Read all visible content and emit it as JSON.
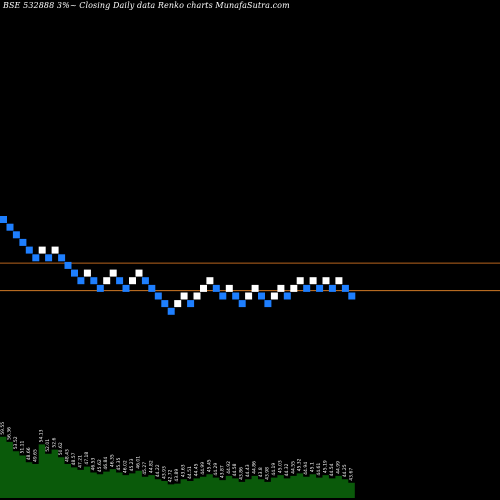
{
  "title": "BSE 532888  3%~  Closing Daily data  Renko  charts MunafaSutra.com",
  "colors": {
    "background": "#000000",
    "up_brick": "#ffffff",
    "down_brick": "#1e7fff",
    "line_1": "#b8641e",
    "line_2": "#d07a26",
    "volume": "#0a5a0a",
    "volume_label": "#ffffff"
  },
  "chart_data": {
    "type": "renko",
    "brick_percent": 3,
    "bricks": [
      {
        "dir": "down",
        "level": 0
      },
      {
        "dir": "down",
        "level": -1
      },
      {
        "dir": "down",
        "level": -2
      },
      {
        "dir": "down",
        "level": -3
      },
      {
        "dir": "down",
        "level": -4
      },
      {
        "dir": "down",
        "level": -5
      },
      {
        "dir": "up",
        "level": -4
      },
      {
        "dir": "down",
        "level": -5
      },
      {
        "dir": "up",
        "level": -4
      },
      {
        "dir": "down",
        "level": -5
      },
      {
        "dir": "down",
        "level": -6
      },
      {
        "dir": "down",
        "level": -7
      },
      {
        "dir": "down",
        "level": -8
      },
      {
        "dir": "up",
        "level": -7
      },
      {
        "dir": "down",
        "level": -8
      },
      {
        "dir": "down",
        "level": -9
      },
      {
        "dir": "up",
        "level": -8
      },
      {
        "dir": "up",
        "level": -7
      },
      {
        "dir": "down",
        "level": -8
      },
      {
        "dir": "down",
        "level": -9
      },
      {
        "dir": "up",
        "level": -8
      },
      {
        "dir": "up",
        "level": -7
      },
      {
        "dir": "down",
        "level": -8
      },
      {
        "dir": "down",
        "level": -9
      },
      {
        "dir": "down",
        "level": -10
      },
      {
        "dir": "down",
        "level": -11
      },
      {
        "dir": "down",
        "level": -12
      },
      {
        "dir": "up",
        "level": -11
      },
      {
        "dir": "up",
        "level": -10
      },
      {
        "dir": "down",
        "level": -11
      },
      {
        "dir": "up",
        "level": -10
      },
      {
        "dir": "up",
        "level": -9
      },
      {
        "dir": "up",
        "level": -8
      },
      {
        "dir": "down",
        "level": -9
      },
      {
        "dir": "down",
        "level": -10
      },
      {
        "dir": "up",
        "level": -9
      },
      {
        "dir": "down",
        "level": -10
      },
      {
        "dir": "down",
        "level": -11
      },
      {
        "dir": "up",
        "level": -10
      },
      {
        "dir": "up",
        "level": -9
      },
      {
        "dir": "down",
        "level": -10
      },
      {
        "dir": "down",
        "level": -11
      },
      {
        "dir": "up",
        "level": -10
      },
      {
        "dir": "up",
        "level": -9
      },
      {
        "dir": "down",
        "level": -10
      },
      {
        "dir": "up",
        "level": -9
      },
      {
        "dir": "up",
        "level": -8
      },
      {
        "dir": "down",
        "level": -9
      },
      {
        "dir": "up",
        "level": -8
      },
      {
        "dir": "down",
        "level": -9
      },
      {
        "dir": "up",
        "level": -8
      },
      {
        "dir": "down",
        "level": -9
      },
      {
        "dir": "up",
        "level": -8
      },
      {
        "dir": "down",
        "level": -9
      },
      {
        "dir": "down",
        "level": -10
      }
    ],
    "horizontal_line_levels": [
      -5.7,
      -9.3
    ],
    "volume": [
      {
        "v": 0.72,
        "label": "59.55"
      },
      {
        "v": 0.66,
        "label": "56.36"
      },
      {
        "v": 0.55,
        "label": "53.52"
      },
      {
        "v": 0.5,
        "label": "51.11"
      },
      {
        "v": 0.42,
        "label": "48.66"
      },
      {
        "v": 0.4,
        "label": "49.65"
      },
      {
        "v": 0.63,
        "label": "54.13"
      },
      {
        "v": 0.52,
        "label": "52.01"
      },
      {
        "v": 0.57,
        "label": "52.6"
      },
      {
        "v": 0.48,
        "label": "50.62"
      },
      {
        "v": 0.4,
        "label": "48.43"
      },
      {
        "v": 0.36,
        "label": "48.57"
      },
      {
        "v": 0.33,
        "label": "47.21"
      },
      {
        "v": 0.37,
        "label": "47.18"
      },
      {
        "v": 0.3,
        "label": "46.53"
      },
      {
        "v": 0.28,
        "label": "45.62"
      },
      {
        "v": 0.31,
        "label": "46.84"
      },
      {
        "v": 0.34,
        "label": "46.35"
      },
      {
        "v": 0.3,
        "label": "45.35"
      },
      {
        "v": 0.27,
        "label": "46.02"
      },
      {
        "v": 0.29,
        "label": "45.23"
      },
      {
        "v": 0.32,
        "label": "46.01"
      },
      {
        "v": 0.25,
        "label": "45.27"
      },
      {
        "v": 0.27,
        "label": "44.82"
      },
      {
        "v": 0.22,
        "label": "44.22"
      },
      {
        "v": 0.2,
        "label": "43.93"
      },
      {
        "v": 0.16,
        "label": "42.72"
      },
      {
        "v": 0.17,
        "label": "43.89"
      },
      {
        "v": 0.22,
        "label": "43.63"
      },
      {
        "v": 0.2,
        "label": "44.51"
      },
      {
        "v": 0.23,
        "label": "44.45"
      },
      {
        "v": 0.25,
        "label": "44.99"
      },
      {
        "v": 0.28,
        "label": "45.45"
      },
      {
        "v": 0.24,
        "label": "44.29"
      },
      {
        "v": 0.21,
        "label": "43.87"
      },
      {
        "v": 0.26,
        "label": "44.92"
      },
      {
        "v": 0.23,
        "label": "44.58"
      },
      {
        "v": 0.19,
        "label": "43.86"
      },
      {
        "v": 0.22,
        "label": "44.43"
      },
      {
        "v": 0.26,
        "label": "44.86"
      },
      {
        "v": 0.22,
        "label": "43.8"
      },
      {
        "v": 0.19,
        "label": "43.98"
      },
      {
        "v": 0.24,
        "label": "44.19"
      },
      {
        "v": 0.27,
        "label": "45.03"
      },
      {
        "v": 0.23,
        "label": "44.32"
      },
      {
        "v": 0.26,
        "label": "44.55"
      },
      {
        "v": 0.29,
        "label": "45.32"
      },
      {
        "v": 0.25,
        "label": "44.94"
      },
      {
        "v": 0.28,
        "label": "45.1"
      },
      {
        "v": 0.24,
        "label": "44.61"
      },
      {
        "v": 0.27,
        "label": "45.19"
      },
      {
        "v": 0.23,
        "label": "44.54"
      },
      {
        "v": 0.26,
        "label": "44.99"
      },
      {
        "v": 0.22,
        "label": "44.25"
      },
      {
        "v": 0.18,
        "label": "43.67"
      }
    ]
  }
}
